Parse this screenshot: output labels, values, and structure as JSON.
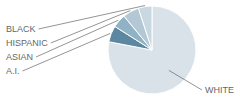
{
  "chart_data": {
    "type": "pie",
    "categories": [
      "WHITE",
      "A.I.",
      "ASIAN",
      "HISPANIC",
      "BLACK"
    ],
    "values": [
      78,
      6,
      5,
      6,
      5
    ],
    "colors": [
      "#d9e2e9",
      "#5b87a0",
      "#8fb3c5",
      "#b3c8d4",
      "#c8d8e0"
    ]
  }
}
